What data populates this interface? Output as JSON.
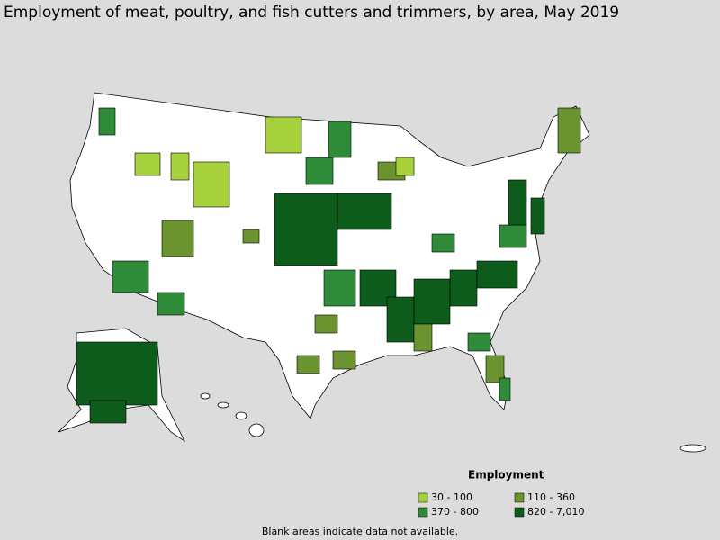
{
  "title": "Employment of meat, poultry, and fish cutters and trimmers, by area, May 2019",
  "legend": {
    "title": "Employment",
    "items": [
      {
        "label": "30 - 100",
        "color": "#a6d13d"
      },
      {
        "label": "110 - 360",
        "color": "#6b9430"
      },
      {
        "label": "370 - 800",
        "color": "#2e8b38"
      },
      {
        "label": "820 - 7,010",
        "color": "#0d5c1b"
      }
    ]
  },
  "note": "Blank areas indicate data not available."
}
